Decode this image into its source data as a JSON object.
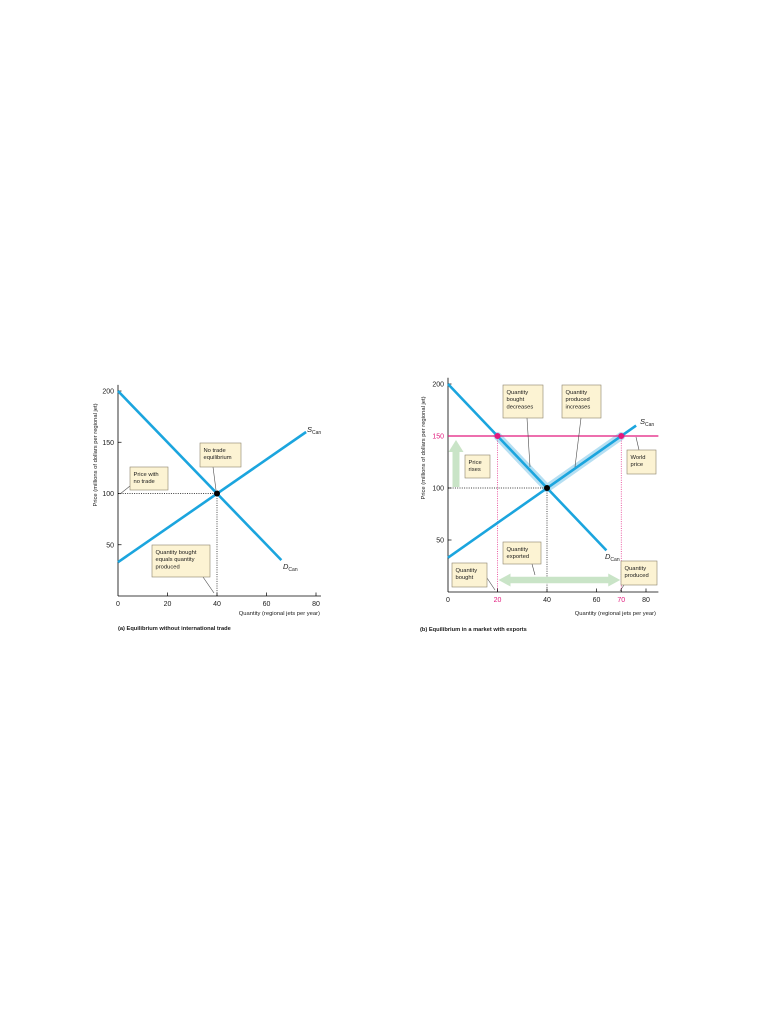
{
  "figure": {
    "background": "#ffffff",
    "line_color": "#1ba5de",
    "accent_color": "#e2197d",
    "glow_color": "#aedcf1",
    "box_fill": "#fcf3d3",
    "box_stroke": "#8c826c",
    "arrow_color": "#c9e4c7"
  },
  "chart_data": [
    {
      "type": "line",
      "title": "(a) Equilibrium without international trade",
      "xlabel": "Quantity (regional jets per year)",
      "ylabel": "Price (millions of dollars per regional jet)",
      "xlim": [
        0,
        82
      ],
      "ylim": [
        0,
        206
      ],
      "xticks": [
        0,
        20,
        40,
        60,
        80
      ],
      "yticks": [
        50,
        100,
        150,
        200
      ],
      "highlight_xticks": [],
      "highlight_yticks": [],
      "grid": false,
      "series": [
        {
          "label": "D",
          "label_sub": "Can",
          "x": [
            0,
            66
          ],
          "y": [
            200,
            35
          ]
        },
        {
          "label": "S",
          "label_sub": "Can",
          "x": [
            0,
            76
          ],
          "y": [
            33,
            160
          ]
        }
      ],
      "guides": [
        {
          "x": 40,
          "y": 100,
          "color": "#000000",
          "horizontal": true,
          "vertical": true
        }
      ],
      "points": [
        {
          "x": 40,
          "y": 100,
          "color": "#000000"
        }
      ],
      "annotations": [
        {
          "lines": [
            "No trade",
            "equilibrium"
          ]
        },
        {
          "lines": [
            "Price with",
            "no trade"
          ]
        },
        {
          "lines": [
            "Quantity bought",
            "equals quantity",
            "produced"
          ]
        }
      ]
    },
    {
      "type": "line",
      "title": "(b) Equilibrium in a market with exports",
      "xlabel": "Quantity (regional jets per year)",
      "ylabel": "Price (millions of dollars per regional jet)",
      "xlim": [
        0,
        85
      ],
      "ylim": [
        0,
        206
      ],
      "xticks": [
        0,
        20,
        40,
        60,
        70,
        80
      ],
      "yticks": [
        50,
        100,
        150,
        200
      ],
      "highlight_xticks": [
        20,
        70
      ],
      "highlight_yticks": [
        150
      ],
      "grid": false,
      "world_price": 150,
      "series": [
        {
          "label": "D",
          "label_sub": "Can",
          "x": [
            0,
            64
          ],
          "y": [
            200,
            40
          ]
        },
        {
          "label": "S",
          "label_sub": "Can",
          "x": [
            0,
            76
          ],
          "y": [
            33,
            160
          ]
        }
      ],
      "highlight_segments": [
        {
          "series": 0,
          "x": [
            20,
            40
          ]
        },
        {
          "series": 1,
          "x": [
            40,
            70
          ]
        }
      ],
      "guides": [
        {
          "x": 40,
          "y": 100,
          "color": "#000000",
          "horizontal": true,
          "vertical": true
        },
        {
          "x": 20,
          "y": 150,
          "color": "#e2197d",
          "horizontal": false,
          "vertical": true
        },
        {
          "x": 70,
          "y": 150,
          "color": "#e2197d",
          "horizontal": false,
          "vertical": true
        }
      ],
      "price_arrow": {
        "from": 100,
        "to": 150
      },
      "export_arrow": {
        "from": 20,
        "to": 70
      },
      "points": [
        {
          "x": 40,
          "y": 100,
          "color": "#000000"
        },
        {
          "x": 20,
          "y": 150,
          "color": "#e2197d"
        },
        {
          "x": 70,
          "y": 150,
          "color": "#e2197d"
        }
      ],
      "annotations": [
        {
          "lines": [
            "Quantity",
            "bought",
            "decreases"
          ]
        },
        {
          "lines": [
            "Quantity",
            "produced",
            "increases"
          ]
        },
        {
          "lines": [
            "Price",
            "rises"
          ]
        },
        {
          "lines": [
            "World",
            "price"
          ]
        },
        {
          "lines": [
            "Quantity",
            "exported"
          ]
        },
        {
          "lines": [
            "Quantity",
            "bought"
          ]
        },
        {
          "lines": [
            "Quantity",
            "produced"
          ]
        }
      ]
    }
  ]
}
